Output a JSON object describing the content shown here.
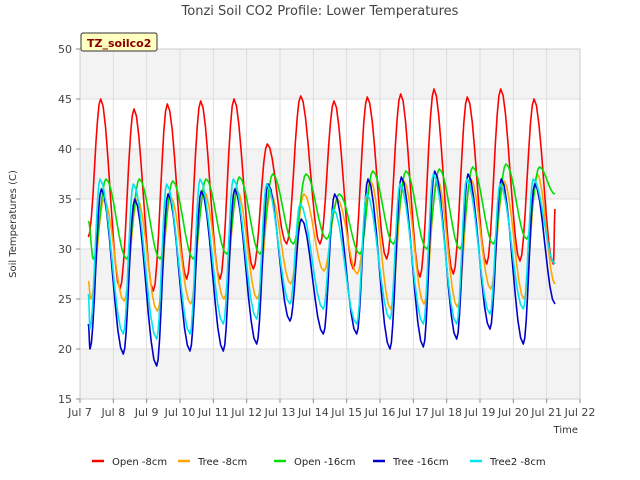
{
  "chart_data": {
    "type": "line",
    "title": "Tonzi Soil CO2 Profile: Lower Temperatures",
    "xlabel": "Time",
    "ylabel": "Soil Temperatures (C)",
    "site_label": "TZ_soilco2",
    "ylim": [
      15,
      50
    ],
    "yticks": [
      15,
      20,
      25,
      30,
      35,
      40,
      45,
      50
    ],
    "xlim": [
      7.0,
      22.0
    ],
    "xticks": [
      {
        "x": 7,
        "label": "Jul 7"
      },
      {
        "x": 8,
        "label": "Jul 8"
      },
      {
        "x": 9,
        "label": "Jul 9"
      },
      {
        "x": 10,
        "label": "Jul 10"
      },
      {
        "x": 11,
        "label": "Jul 11"
      },
      {
        "x": 12,
        "label": "Jul 12"
      },
      {
        "x": 13,
        "label": "Jul 13"
      },
      {
        "x": 14,
        "label": "Jul 14"
      },
      {
        "x": 15,
        "label": "Jul 15"
      },
      {
        "x": 16,
        "label": "Jul 16"
      },
      {
        "x": 17,
        "label": "Jul 17"
      },
      {
        "x": 18,
        "label": "Jul 18"
      },
      {
        "x": 19,
        "label": "Jul 19"
      },
      {
        "x": 20,
        "label": "Jul 20"
      },
      {
        "x": 21,
        "label": "Jul 21"
      },
      {
        "x": 22,
        "label": "Jul 22"
      }
    ],
    "grid": true,
    "legend_position": "bottom",
    "days": [
      7,
      8,
      9,
      10,
      11,
      12,
      13,
      14,
      15,
      16,
      17,
      18,
      19,
      20,
      21
    ],
    "series": [
      {
        "name": "Open -8cm",
        "color": "#ff0000",
        "start": [
          7.25,
          31.2
        ],
        "end": [
          21.25,
          34.0
        ],
        "minima": [
          27.2,
          26.0,
          25.8,
          27.0,
          27.0,
          28.0,
          30.5,
          30.5,
          28.0,
          29.0,
          27.2,
          27.5,
          28.5,
          28.8,
          28.5
        ],
        "maxima": [
          45.0,
          44.0,
          44.5,
          44.8,
          45.0,
          40.5,
          45.3,
          44.8,
          45.2,
          45.5,
          46.0,
          45.2,
          46.0,
          45.0,
          45.0
        ],
        "min_phase": 0.2,
        "max_phase": 0.62
      },
      {
        "name": "Tree -8cm",
        "color": "#ffa500",
        "start": [
          7.25,
          26.8
        ],
        "end": [
          21.25,
          26.5
        ],
        "minima": [
          25.0,
          24.8,
          23.8,
          24.5,
          25.0,
          25.0,
          26.5,
          27.8,
          27.5,
          24.0,
          24.5,
          24.2,
          26.0,
          25.0,
          25.0
        ],
        "maxima": [
          35.0,
          35.0,
          35.2,
          35.8,
          35.8,
          35.5,
          35.5,
          35.0,
          36.8,
          36.8,
          37.0,
          37.0,
          36.8,
          37.5,
          37.0
        ],
        "min_phase": 0.32,
        "max_phase": 0.72
      },
      {
        "name": "Open -16cm",
        "color": "#00dd00",
        "start": [
          7.25,
          32.8
        ],
        "end": [
          21.25,
          35.5
        ],
        "minima": [
          29.0,
          29.0,
          29.0,
          29.0,
          29.5,
          29.5,
          30.5,
          31.0,
          29.5,
          30.5,
          30.0,
          30.0,
          30.5,
          31.0,
          31.0
        ],
        "maxima": [
          37.0,
          37.0,
          36.8,
          37.0,
          37.2,
          37.5,
          37.5,
          35.5,
          37.8,
          37.8,
          38.0,
          38.2,
          38.5,
          38.2,
          38.5
        ],
        "min_phase": 0.4,
        "max_phase": 0.78
      },
      {
        "name": "Tree -16cm",
        "color": "#0000cc",
        "start": [
          7.25,
          22.5
        ],
        "end": [
          21.25,
          24.5
        ],
        "minima": [
          20.0,
          19.5,
          18.3,
          19.8,
          19.8,
          20.5,
          22.8,
          21.5,
          21.5,
          20.0,
          20.2,
          21.0,
          22.0,
          20.5,
          20.5
        ],
        "maxima": [
          36.0,
          35.0,
          35.5,
          35.8,
          36.0,
          36.5,
          33.0,
          35.5,
          37.0,
          37.2,
          37.8,
          37.5,
          37.0,
          36.5,
          36.0
        ],
        "min_phase": 0.3,
        "max_phase": 0.64
      },
      {
        "name": "Tree2 -8cm",
        "color": "#00e5ee",
        "start": [
          7.25,
          25.5
        ],
        "end": [
          21.25,
          28.5
        ],
        "minima": [
          22.0,
          21.5,
          21.0,
          21.5,
          22.5,
          23.0,
          24.5,
          24.0,
          22.5,
          23.0,
          22.5,
          22.5,
          23.5,
          24.0,
          24.0
        ],
        "maxima": [
          37.0,
          36.5,
          36.5,
          37.0,
          37.0,
          36.5,
          34.5,
          34.0,
          35.5,
          36.5,
          37.5,
          37.0,
          36.5,
          37.0,
          37.0
        ],
        "min_phase": 0.3,
        "max_phase": 0.6
      }
    ]
  }
}
